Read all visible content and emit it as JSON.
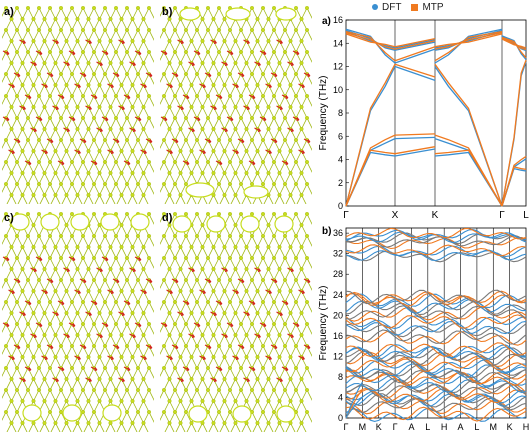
{
  "structures": {
    "a": {
      "label": "a)"
    },
    "b": {
      "label": "b)"
    },
    "c": {
      "label": "c)"
    },
    "d": {
      "label": "d)"
    },
    "colors": {
      "atom": "#c7dd1e",
      "bond": "#9fb60f",
      "arrow": "#d4221e"
    }
  },
  "legend": {
    "dft": {
      "label": "DFT",
      "color": "#3a8fd1"
    },
    "mtp": {
      "label": "MTP",
      "color": "#f07a20"
    }
  },
  "chart_data": [
    {
      "type": "line",
      "panel_label": "a)",
      "ylabel": "Frequency (THz)",
      "ylim": [
        0,
        16
      ],
      "yticks": [
        "0",
        "2",
        "4",
        "6",
        "8",
        "10",
        "12",
        "14",
        "16"
      ],
      "xtick_labels": [
        "Γ",
        "X",
        "K",
        "Γ",
        "L"
      ],
      "series": [
        {
          "name": "DFT",
          "color": "#3a8fd1",
          "bands": [
            [
              [
                0,
                0
              ],
              [
                0.5,
                4.6
              ],
              [
                0.8,
                4.4
              ],
              [
                1.0,
                4.3
              ]
            ],
            [
              [
                0,
                0
              ],
              [
                0.5,
                4.8
              ],
              [
                0.8,
                5.4
              ],
              [
                1.0,
                5.8
              ]
            ],
            [
              [
                0,
                0
              ],
              [
                0.5,
                8.2
              ],
              [
                0.8,
                10.3
              ],
              [
                1.0,
                12.0
              ]
            ],
            [
              [
                0,
                15.2
              ],
              [
                0.5,
                14.6
              ],
              [
                0.8,
                13.0
              ],
              [
                1.0,
                12.3
              ]
            ],
            [
              [
                0,
                15.1
              ],
              [
                0.5,
                14.4
              ],
              [
                0.8,
                13.6
              ],
              [
                1.0,
                13.4
              ]
            ],
            [
              [
                0,
                15.0
              ],
              [
                0.5,
                14.2
              ],
              [
                0.8,
                13.8
              ],
              [
                1.0,
                13.6
              ]
            ]
          ]
        },
        {
          "name": "MTP",
          "color": "#f07a20",
          "bands": [
            [
              [
                0,
                0
              ],
              [
                0.5,
                4.8
              ],
              [
                0.8,
                4.6
              ],
              [
                1.0,
                4.5
              ]
            ],
            [
              [
                0,
                0
              ],
              [
                0.5,
                5.0
              ],
              [
                0.8,
                5.7
              ],
              [
                1.0,
                6.1
              ]
            ],
            [
              [
                0,
                0
              ],
              [
                0.5,
                8.4
              ],
              [
                0.8,
                10.6
              ],
              [
                1.0,
                12.2
              ]
            ],
            [
              [
                0,
                15.0
              ],
              [
                0.5,
                14.5
              ],
              [
                0.8,
                13.2
              ],
              [
                1.0,
                12.5
              ]
            ],
            [
              [
                0,
                14.9
              ],
              [
                0.5,
                14.3
              ],
              [
                0.8,
                13.7
              ],
              [
                1.0,
                13.5
              ]
            ],
            [
              [
                0,
                14.8
              ],
              [
                0.5,
                14.1
              ],
              [
                0.8,
                13.9
              ],
              [
                1.0,
                13.7
              ]
            ]
          ]
        }
      ]
    },
    {
      "type": "line",
      "panel_label": "b)",
      "ylabel": "Frequency (THz)",
      "ylim": [
        0,
        37
      ],
      "yticks": [
        "0",
        "4",
        "8",
        "12",
        "16",
        "20",
        "24",
        "28",
        "32",
        "36"
      ],
      "xtick_labels": [
        "Γ",
        "M",
        "K",
        "Γ",
        "A",
        "L",
        "H",
        "A",
        "L",
        "M",
        "K",
        "H"
      ],
      "flat_bands_thz": [
        0.5,
        2.2,
        3.4,
        4.0,
        5.2,
        6.1,
        7.3,
        8.0,
        8.9,
        10.1,
        11.4,
        12.3,
        13.1,
        15.5,
        17.2,
        18.6,
        20.2,
        21.5,
        22.8,
        23.3,
        31.5,
        32.4,
        34.1,
        35.0,
        35.6
      ]
    }
  ]
}
